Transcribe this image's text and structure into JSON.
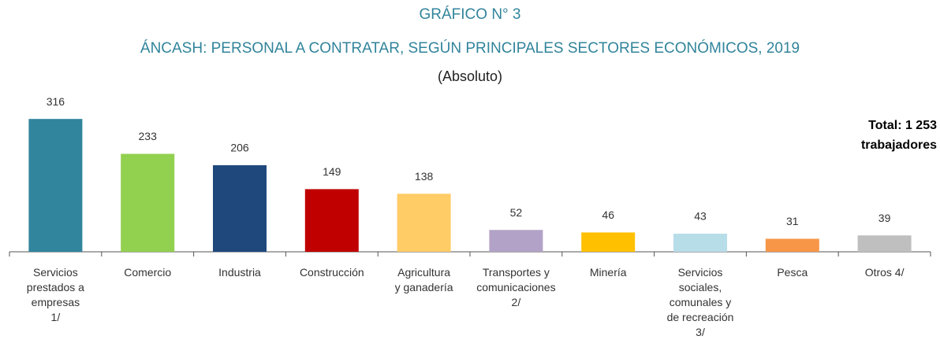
{
  "chart_data": {
    "type": "bar",
    "title": "GRÁFICO N° 3",
    "subtitle": "ÁNCASH: PERSONAL A CONTRATAR, SEGÚN PRINCIPALES SECTORES ECONÓMICOS, 2019",
    "unit_label": "(Absoluto)",
    "annotation": [
      "Total: 1 253",
      "trabajadores"
    ],
    "categories": [
      "Servicios\nprestados a\nempresas\n1/",
      "Comercio",
      "Industria",
      "Construcción",
      "Agricultura\ny ganadería",
      "Transportes y\ncomunicaciones\n2/",
      "Minería",
      "Servicios\nsociales,\ncomunales y\nde recreación\n3/",
      "Pesca",
      "Otros 4/"
    ],
    "values": [
      316,
      233,
      206,
      149,
      138,
      52,
      46,
      43,
      31,
      39
    ],
    "colors": [
      "#31859c",
      "#92d050",
      "#1f497d",
      "#c00000",
      "#ffcc66",
      "#b3a2c7",
      "#ffc000",
      "#b7dde8",
      "#f79646",
      "#bfbfbf"
    ],
    "ylim": [
      0,
      350
    ],
    "grid": false
  }
}
